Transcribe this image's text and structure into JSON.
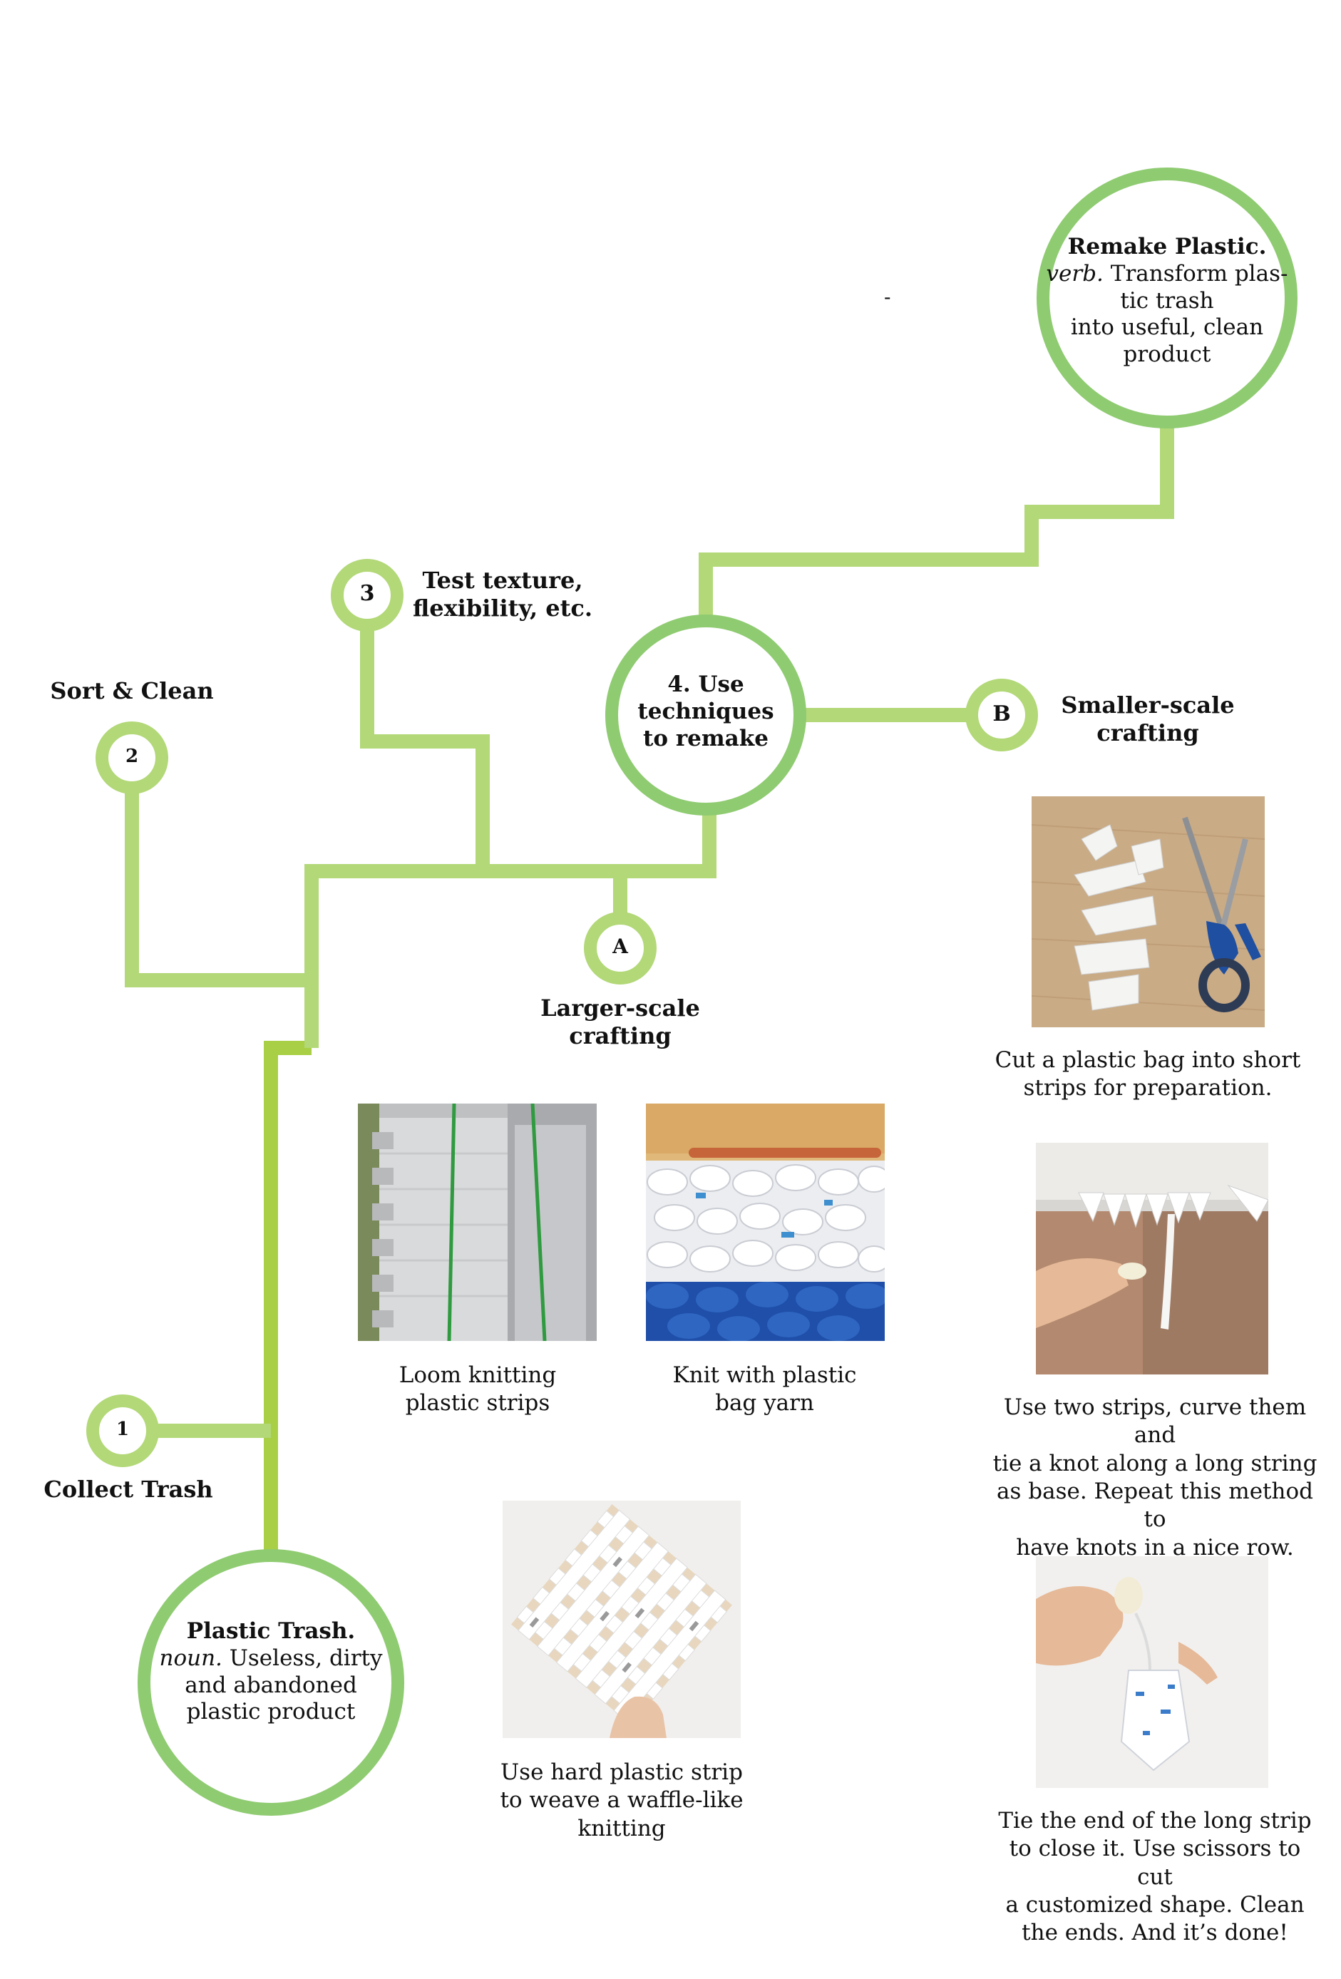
{
  "colors": {
    "line_green": "#b2d877",
    "dark_green": "#a8cf45",
    "circle_green": "#8fcb71",
    "text": "#111111"
  },
  "end": {
    "title": "Remake Plastic.",
    "pos": "verb.",
    "definition_1": " Transform plas-",
    "definition_2": "tic trash",
    "definition_3": "into useful, clean",
    "definition_4": "product"
  },
  "start": {
    "title": "Plastic Trash.",
    "pos": "noun.",
    "definition_1": " Useless, dirty",
    "definition_2": "and abandoned",
    "definition_3": "plastic product"
  },
  "stray_mark": "-",
  "steps": {
    "step1": {
      "number": "1",
      "label": "Collect Trash"
    },
    "step2": {
      "number": "2",
      "label": "Sort & Clean"
    },
    "step3": {
      "number": "3",
      "label_1": "Test texture,",
      "label_2": "flexibility, etc."
    },
    "step4": {
      "label_1": "4. Use",
      "label_2": "techniques",
      "label_3": "to remake"
    },
    "branchA": {
      "letter": "A",
      "label_1": "Larger-scale",
      "label_2": "crafting"
    },
    "branchB": {
      "letter": "B",
      "label_1": "Smaller-scale",
      "label_2": "crafting"
    }
  },
  "photos": {
    "loom": {
      "caption_1": "Loom knitting",
      "caption_2": "plastic strips",
      "icon": "loom-photo"
    },
    "knit": {
      "caption_1": "Knit with plastic",
      "caption_2": "bag yarn",
      "icon": "knit-photo"
    },
    "weave": {
      "caption_1": "Use hard plastic strip",
      "caption_2": "to weave a waffle-like",
      "caption_3": "knitting",
      "icon": "weave-photo"
    },
    "cut": {
      "caption_1": "Cut a plastic bag into short",
      "caption_2": "strips for preparation.",
      "icon": "scissors-photo"
    },
    "knot": {
      "caption_1": "Use two strips, curve them and",
      "caption_2": "tie a knot along a long string",
      "caption_3": "as base. Repeat this method to",
      "caption_4": "have knots in a nice row.",
      "icon": "knot-photo"
    },
    "finish": {
      "caption_1": "Tie the end of the long strip",
      "caption_2": "to close it. Use scissors to cut",
      "caption_3": "a customized shape. Clean",
      "caption_4": "the ends. And it’s done!",
      "icon": "finished-tassel-photo"
    }
  }
}
